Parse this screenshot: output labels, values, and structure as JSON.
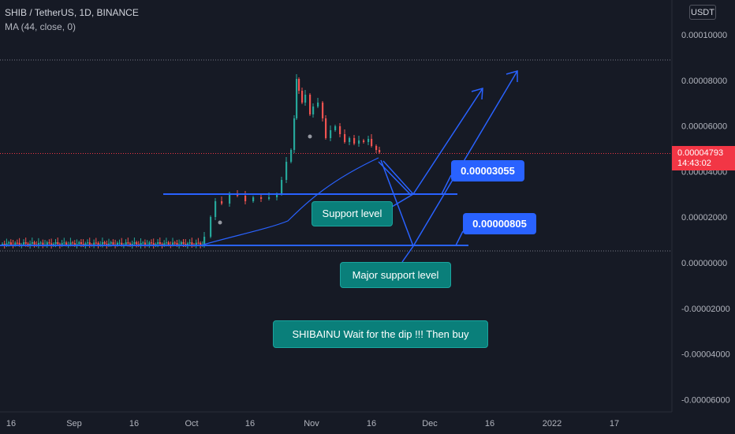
{
  "header": {
    "symbol_line": "SHIB / TetherUS, 1D, BINANCE",
    "ma_line": "MA (44, close, 0)"
  },
  "currency_button": "USDT",
  "last_price": {
    "value": "0.00004793",
    "countdown": "14:43:02"
  },
  "annotations": {
    "support_level": "Support level",
    "major_support_level": "Major support level",
    "support_value": "0.00003055",
    "major_support_value": "0.00000805",
    "note": "SHIBAINU Wait for the dip !!! Then buy"
  },
  "colors": {
    "background": "#161a25",
    "up_candle": "#26a69a",
    "down_candle": "#ef5350",
    "ma_line": "#2962ff",
    "drawing_lines": "#2962ff",
    "callout_teal": "#0a7f7a",
    "callout_blue": "#2962ff",
    "price_tag": "#f23645"
  },
  "chart_data": {
    "type": "candlestick",
    "title": "SHIB / TetherUS, 1D, BINANCE",
    "y_ticks": [
      "0.00010000",
      "0.00008000",
      "0.00006000",
      "0.00004000",
      "0.00002000",
      "0.00000000",
      "-0.00002000",
      "-0.00004000",
      "-0.00006000"
    ],
    "x_ticks": [
      "16",
      "Sep",
      "16",
      "Oct",
      "16",
      "Nov",
      "16",
      "Dec",
      "16",
      "2022",
      "17"
    ],
    "ylim": [
      -6.4e-05,
      0.000108
    ],
    "grid": false,
    "series": [
      {
        "name": "MA (44, close, 0)",
        "kind": "line"
      }
    ],
    "horizontal_levels": [
      3.055e-05,
      8.05e-06
    ],
    "last_price": 4.793e-05
  }
}
